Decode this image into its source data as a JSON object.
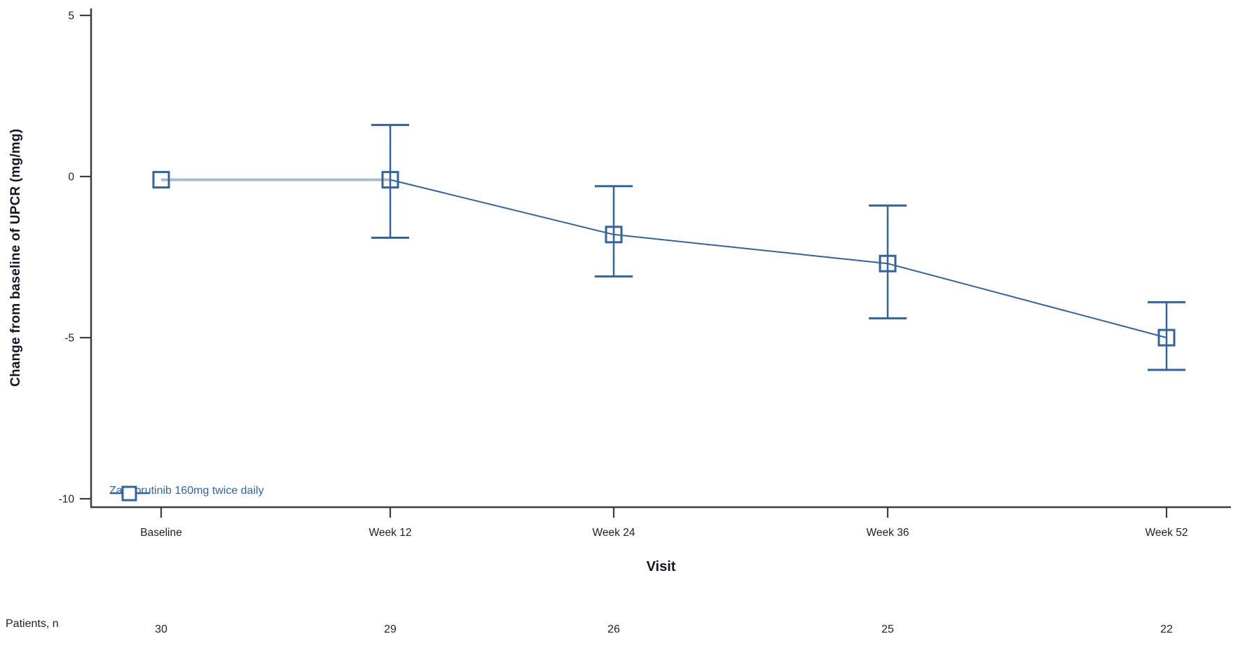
{
  "chart_data": {
    "type": "line",
    "title": "",
    "xlabel": "Visit",
    "ylabel": "Change from baseline of UPCR (mg/mg)",
    "categories": [
      "Baseline",
      "Week 12",
      "Week 24",
      "Week 36",
      "Week 52"
    ],
    "series": [
      {
        "name": "Zanubrutinib 160mg twice daily",
        "values": [
          -0.1,
          -0.1,
          -1.8,
          -2.7,
          -5.0
        ],
        "ci_upper": [
          null,
          1.6,
          -0.3,
          -0.9,
          -3.9
        ],
        "ci_lower": [
          null,
          -1.9,
          -3.1,
          -4.4,
          -6.0
        ],
        "color": "#31639f",
        "marker": "open-square"
      }
    ],
    "baseline_segment_color": "#aeb9cc",
    "y_ticks": [
      5,
      0,
      -5,
      -10
    ],
    "ylim": [
      -10.3,
      5.25
    ],
    "grid": false,
    "legend_position": "inside-bottom-left"
  },
  "patients_row": {
    "label": "Patients, n",
    "values": [
      "30",
      "29",
      "26",
      "25",
      "22"
    ]
  }
}
